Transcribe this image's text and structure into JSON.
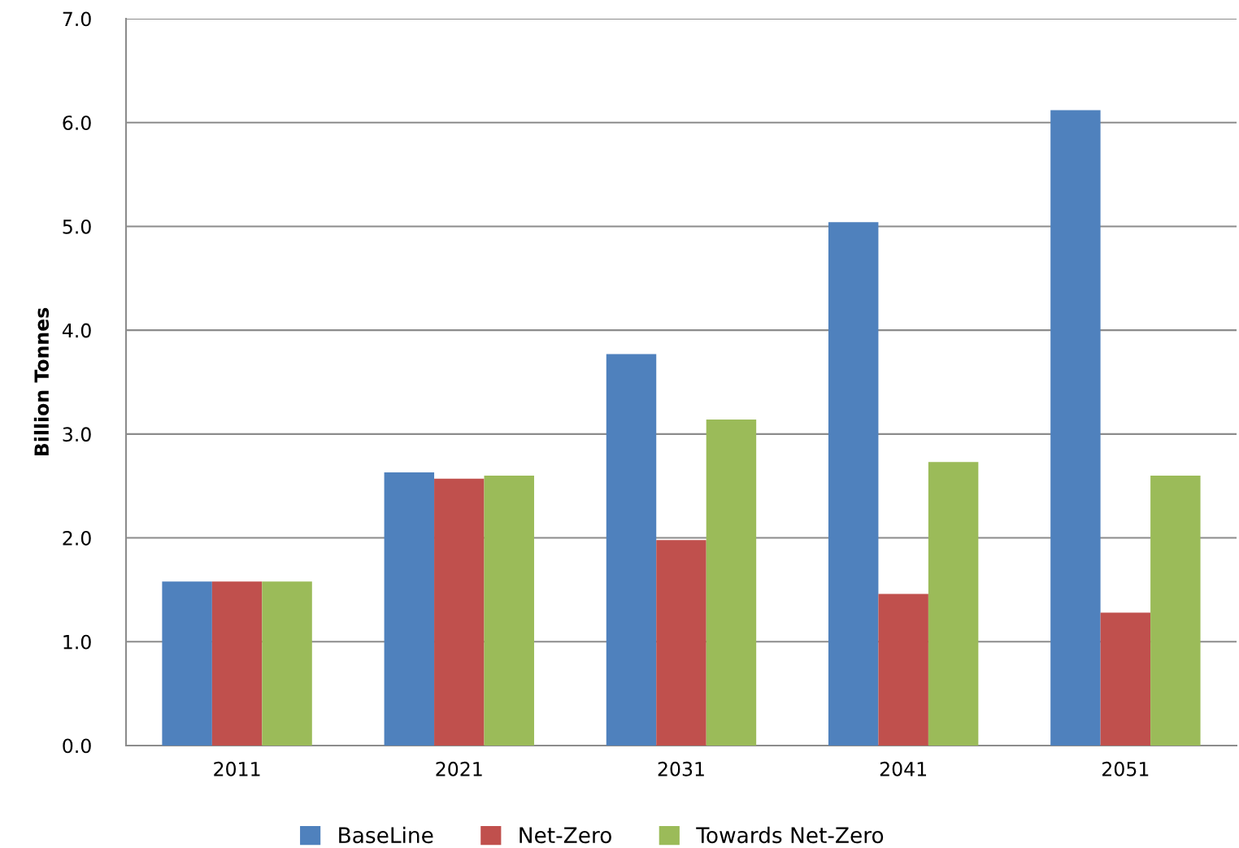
{
  "chart_data": {
    "type": "bar",
    "ylabel": "Billion Tonnes",
    "categories": [
      "2011",
      "2021",
      "2031",
      "2041",
      "2051"
    ],
    "series": [
      {
        "name": "BaseLine",
        "color": "#4f81bd",
        "values": [
          1.58,
          2.63,
          3.77,
          5.04,
          6.12
        ]
      },
      {
        "name": "Net-Zero",
        "color": "#c0504d",
        "values": [
          1.58,
          2.57,
          1.98,
          1.46,
          1.28
        ]
      },
      {
        "name": "Towards Net-Zero",
        "color": "#9bbb59",
        "values": [
          1.58,
          2.6,
          3.14,
          2.73,
          2.6
        ]
      }
    ],
    "ylim": [
      0,
      7
    ],
    "yticks": [
      {
        "value": 0,
        "label": "0.0"
      },
      {
        "value": 1,
        "label": "1.0"
      },
      {
        "value": 2,
        "label": "2.0"
      },
      {
        "value": 3,
        "label": "3.0"
      },
      {
        "value": 4,
        "label": "4.0"
      },
      {
        "value": 5,
        "label": "5.0"
      },
      {
        "value": 6,
        "label": "6.0"
      },
      {
        "value": 7,
        "label": "7.0"
      }
    ],
    "grid": "y",
    "legend": "bottom"
  }
}
